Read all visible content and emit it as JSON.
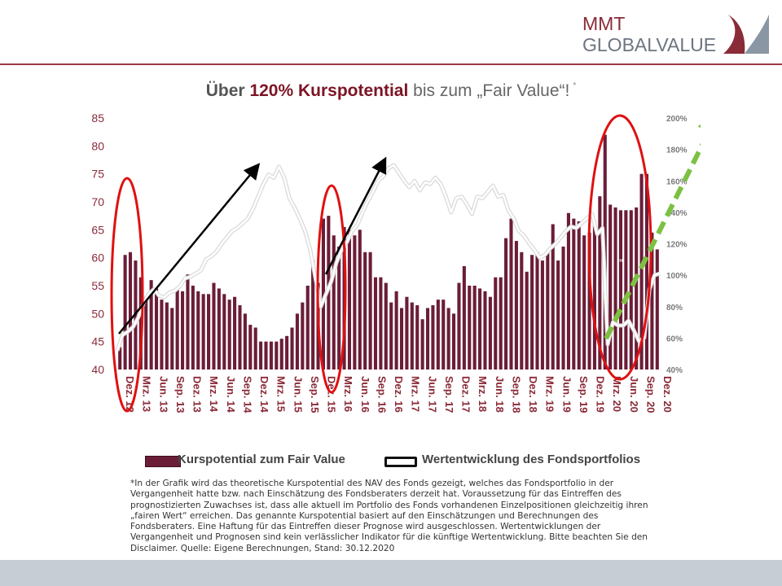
{
  "brand": {
    "line1": "MMT",
    "line2": "GLOBALVALUE"
  },
  "title": {
    "part1": "Über ",
    "part2": "120% Kurspotential",
    "part3": " bis zum „Fair Value“!",
    "part4": "*"
  },
  "colors": {
    "bar": "#6b1d38",
    "accent": "#7c1424",
    "circle": "#e01010",
    "arrow_green": "#7cc142",
    "arrow_black": "#000000",
    "line": "#ffffff"
  },
  "chart_data": {
    "type": "bar+line",
    "left_axis": {
      "ticks": [
        "85",
        "80",
        "75",
        "70",
        "65",
        "60",
        "55",
        "50",
        "45",
        "40"
      ],
      "range": [
        40,
        85
      ]
    },
    "right_axis": {
      "ticks": [
        "200%",
        "180%",
        "160%",
        "140%",
        "120%",
        "100%",
        "80%",
        "60%",
        "40%"
      ],
      "range": [
        40,
        200
      ]
    },
    "x_ticks": [
      "Dez. 12",
      "Mrz. 13",
      "Jun. 13",
      "Sep. 13",
      "Dez. 13",
      "Mrz. 14",
      "Jun. 14",
      "Sep. 14",
      "Dez. 14",
      "Mrz. 15",
      "Jun. 15",
      "Sep. 15",
      "Dez. 15",
      "Mrz. 16",
      "Jun. 16",
      "Sep. 16",
      "Dez. 16",
      "Mrz. 17",
      "Jun. 17",
      "Sep. 17",
      "Dez. 17",
      "Mrz. 18",
      "Jun. 18",
      "Sep. 18",
      "Dez. 18",
      "Mrz. 19",
      "Jun. 19",
      "Sep. 19",
      "Dez. 19",
      "Mrz. 20",
      "Jun. 20",
      "Sep. 20",
      "Dez. 20"
    ],
    "series": [
      {
        "name": "Kurspotential zum Fair Value",
        "type": "bar",
        "values": [
          44,
          60.5,
          61,
          59.5,
          56.5,
          53,
          56,
          54.5,
          52.5,
          52,
          51,
          54.5,
          54,
          57,
          55,
          54,
          53.5,
          53.5,
          55.5,
          54.5,
          53.5,
          52.5,
          53,
          51.5,
          50,
          48,
          47.5,
          45,
          45,
          45,
          45,
          45.5,
          46,
          47.5,
          50,
          52,
          55,
          59.5,
          55.5,
          67,
          67.5,
          64,
          62,
          65.5,
          65,
          64,
          65,
          61,
          61,
          56.5,
          56.5,
          55.5,
          52,
          54,
          51,
          53,
          52,
          51.5,
          49,
          51,
          51.5,
          52.5,
          52.5,
          51,
          50,
          55.5,
          58.5,
          55,
          55,
          54.5,
          54,
          53,
          56.5,
          56.5,
          63.5,
          67,
          63,
          61,
          57.5,
          60.5,
          61,
          59.5,
          61,
          66,
          59.5,
          62,
          68,
          67,
          66.5,
          64,
          64.5,
          66.5,
          71,
          82,
          69.5,
          69,
          68.5,
          68.5,
          68.5,
          69,
          75,
          75,
          64.5,
          61.5
        ]
      },
      {
        "name": "Wertentwicklung des Fondsportfolios",
        "type": "line",
        "values": [
          52,
          62,
          64,
          67,
          73,
          82,
          88,
          91,
          87,
          86,
          89,
          90,
          93,
          98,
          99,
          101,
          103,
          110,
          112,
          115,
          120,
          124,
          128,
          130,
          133,
          136,
          142,
          150,
          158,
          164,
          162,
          169,
          162,
          149,
          143,
          136,
          128,
          116,
          98,
          80,
          88,
          96,
          108,
          116,
          121,
          128,
          132,
          140,
          147,
          153,
          160,
          163,
          168,
          170,
          165,
          160,
          156,
          160,
          154,
          159,
          158,
          162,
          158,
          150,
          140,
          149,
          150,
          145,
          139,
          150,
          149,
          153,
          157,
          150,
          151,
          141,
          136,
          128,
          125,
          120,
          116,
          111,
          113,
          117,
          120,
          124,
          128,
          131,
          130,
          133,
          136,
          139,
          126,
          130,
          56,
          70,
          68,
          68,
          71,
          65,
          58,
          60,
          91,
          100,
          101
        ]
      }
    ]
  },
  "legend": {
    "bar_label": "Kurspotential zum Fair Value",
    "line_label": "Wertentwicklung des Fondsportfolios"
  },
  "annotation": {
    "quote_mark": "„"
  },
  "note": "*In der Grafik wird das theoretische Kurspotential des NAV des Fonds gezeigt, welches das Fondsportfolio in der Vergangenheit hatte bzw. nach Einschätzung des Fondsberaters derzeit hat. Voraussetzung für das Eintreffen des prognostizierten Zuwachses ist, dass alle aktuell im Portfolio des Fonds vorhandenen Einzelpositionen gleichzeitig ihren „fairen Wert“ erreichen. Das genannte Kurspotential basiert auf den Einschätzungen und Berechnungen des Fondsberaters. Eine Haftung für das Eintreffen dieser Prognose wird ausgeschlossen. Wertentwicklungen der Vergangenheit und Prognosen sind kein verlässlicher Indikator für die künftige Wertentwicklung. Bitte beachten Sie den Disclaimer. Quelle: Eigene Berechnungen, Stand: 30.12.2020"
}
